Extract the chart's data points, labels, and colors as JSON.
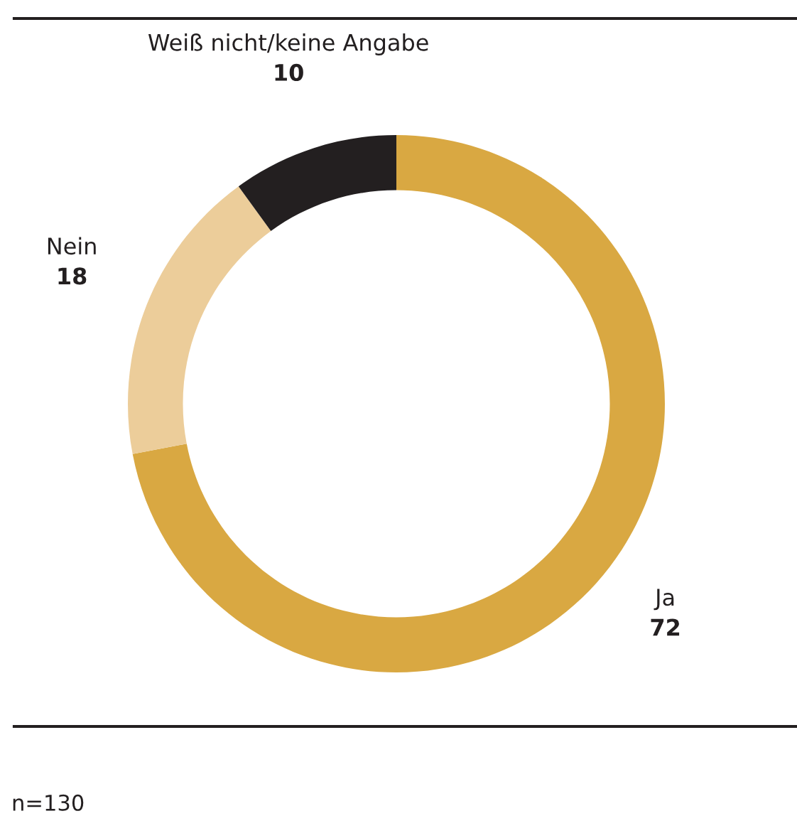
{
  "chart_data": {
    "type": "donut",
    "categories": [
      "Ja",
      "Nein",
      "Weiß nicht/keine Angabe"
    ],
    "values": [
      72,
      18,
      10
    ],
    "colors": [
      "#d9a842",
      "#eccd9a",
      "#231f20"
    ],
    "data_labels": true,
    "annotations": [
      "n=130"
    ]
  }
}
